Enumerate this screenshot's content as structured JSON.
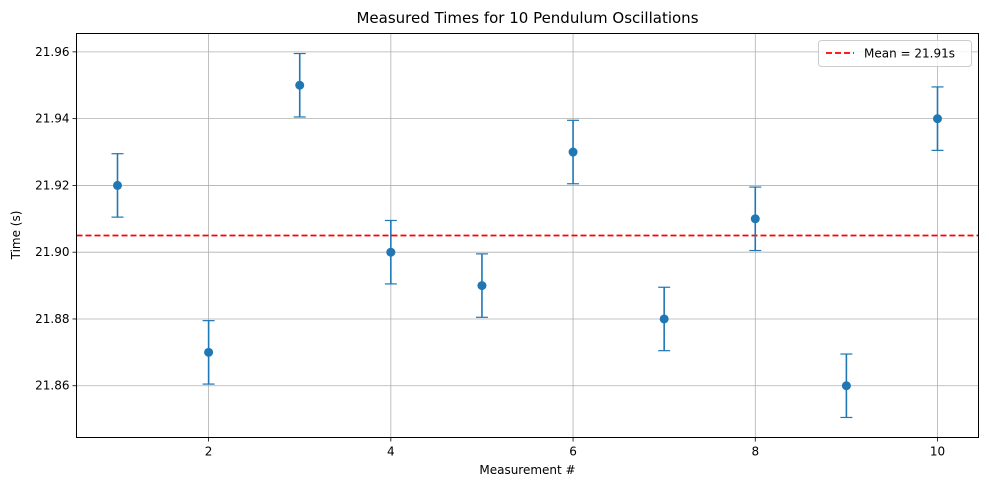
{
  "chart_data": {
    "type": "scatter",
    "title": "Measured Times for 10 Pendulum Oscillations",
    "xlabel": "Measurement #",
    "ylabel": "Time (s)",
    "xlim": [
      0.55,
      10.45
    ],
    "ylim": [
      21.8445,
      21.9655
    ],
    "xticks": [
      2,
      4,
      6,
      8,
      10
    ],
    "yticks": [
      21.86,
      21.88,
      21.9,
      21.92,
      21.94,
      21.96
    ],
    "ytick_labels": [
      "21.86",
      "21.88",
      "21.90",
      "21.92",
      "21.94",
      "21.96"
    ],
    "grid": true,
    "legend_position": "top-right",
    "series": [
      {
        "x": [
          1,
          2,
          3,
          4,
          5,
          6,
          7,
          8,
          9,
          10
        ],
        "y": [
          21.92,
          21.87,
          21.95,
          21.9,
          21.89,
          21.93,
          21.88,
          21.91,
          21.86,
          21.94
        ],
        "yerr": 0.0095,
        "color": "#1f77b4"
      }
    ],
    "reference_line": {
      "label": "Mean = 21.91s",
      "y": 21.905,
      "color": "#ff0000",
      "style": "dashed"
    }
  }
}
